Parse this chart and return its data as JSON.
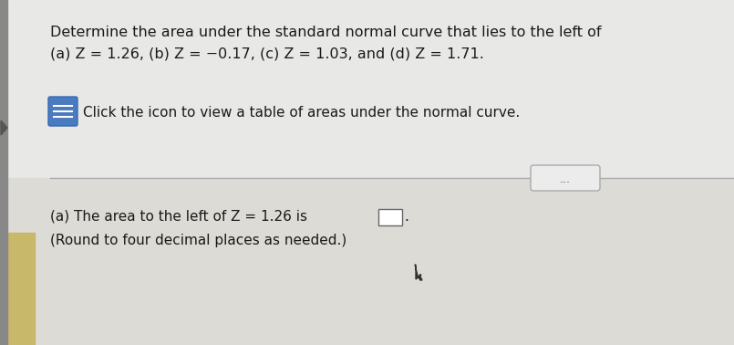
{
  "title_line1": "Determine the area under the standard normal curve that lies to the left of",
  "title_line2": "(a) Z = 1.26, (b) Z = −0.17, (c) Z = 1.03, and (d) Z = 1.71.",
  "click_text": "Click the icon to view a table of areas under the normal curve.",
  "answer_line1": "(a) The area to the left of Z = 1.26 is",
  "answer_line2": "(Round to four decimal places as needed.)",
  "dots_button_text": "...",
  "bg_color": "#e8e8e6",
  "bg_color_bottom": "#dddbd5",
  "left_stripe_color": "#c8b86a",
  "left_dark_bar_color": "#888880",
  "icon_color": "#4a7abf",
  "separator_color": "#aaaaaa",
  "text_color": "#1a1a1a",
  "font_size_title": 11.5,
  "font_size_click": 11,
  "font_size_answer": 11,
  "dots_button_color": "#ececec",
  "dots_button_border": "#aaaaaa"
}
